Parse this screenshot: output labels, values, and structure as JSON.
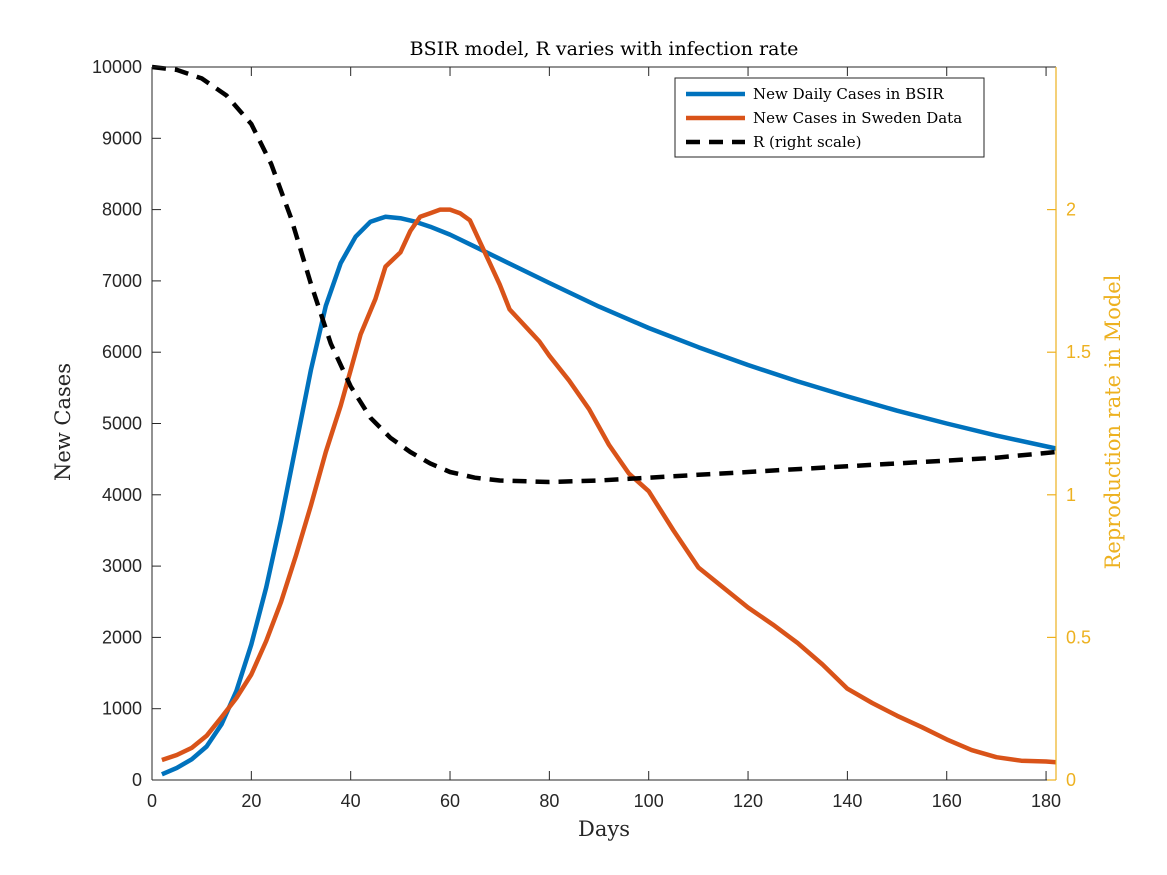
{
  "chart_data": {
    "type": "line",
    "title": "BSIR model, R varies with infection rate",
    "xlabel": "Days",
    "ylabel": "New Cases",
    "y2label": "Reproduction rate in Model",
    "xlim": [
      0,
      182
    ],
    "ylim": [
      0,
      10000
    ],
    "y2lim": [
      0,
      2.5
    ],
    "xticks": [
      0,
      20,
      40,
      60,
      80,
      100,
      120,
      140,
      160,
      180
    ],
    "yticks": [
      0,
      1000,
      2000,
      3000,
      4000,
      5000,
      6000,
      7000,
      8000,
      9000,
      10000
    ],
    "y2ticks": [
      0,
      0.5,
      1,
      1.5,
      2
    ],
    "y2_color": "#EDB120",
    "grid": false,
    "legend_position": "top-right",
    "series": [
      {
        "name": "New Daily Cases in BSIR",
        "axis": "left",
        "color": "#0072BD",
        "style": "solid",
        "x": [
          2,
          5,
          8,
          11,
          14,
          17,
          20,
          23,
          26,
          29,
          32,
          35,
          38,
          41,
          44,
          47,
          50,
          53,
          56,
          60,
          65,
          70,
          75,
          80,
          90,
          100,
          110,
          120,
          130,
          140,
          150,
          160,
          170,
          182
        ],
        "y": [
          80,
          170,
          290,
          470,
          780,
          1250,
          1900,
          2700,
          3650,
          4700,
          5750,
          6650,
          7250,
          7620,
          7830,
          7900,
          7880,
          7830,
          7760,
          7650,
          7480,
          7310,
          7140,
          6970,
          6640,
          6340,
          6070,
          5820,
          5590,
          5380,
          5180,
          5000,
          4830,
          4650
        ]
      },
      {
        "name": "New Cases in Sweden Data",
        "axis": "left",
        "color": "#D95319",
        "style": "solid",
        "x": [
          2,
          5,
          8,
          11,
          14,
          17,
          20,
          23,
          26,
          29,
          32,
          35,
          38,
          40,
          42,
          45,
          47,
          50,
          52,
          54,
          56,
          58,
          60,
          62,
          64,
          66,
          68,
          70,
          72,
          74,
          76,
          78,
          80,
          84,
          88,
          92,
          96,
          100,
          105,
          110,
          115,
          120,
          125,
          130,
          135,
          140,
          145,
          150,
          155,
          160,
          165,
          170,
          175,
          180,
          182
        ],
        "y": [
          280,
          350,
          450,
          620,
          880,
          1150,
          1480,
          1950,
          2500,
          3150,
          3850,
          4600,
          5250,
          5750,
          6250,
          6750,
          7200,
          7400,
          7700,
          7900,
          7950,
          8000,
          8000,
          7950,
          7850,
          7550,
          7250,
          6950,
          6600,
          6450,
          6300,
          6150,
          5950,
          5600,
          5200,
          4700,
          4300,
          4050,
          3500,
          2980,
          2700,
          2420,
          2180,
          1920,
          1620,
          1280,
          1080,
          900,
          740,
          570,
          420,
          320,
          270,
          260,
          250
        ]
      },
      {
        "name": "R (right scale)",
        "axis": "right",
        "color": "#000000",
        "style": "dashed",
        "x": [
          0,
          5,
          10,
          15,
          20,
          24,
          28,
          32,
          36,
          40,
          44,
          48,
          52,
          56,
          60,
          65,
          70,
          80,
          90,
          100,
          110,
          120,
          130,
          140,
          150,
          160,
          170,
          182
        ],
        "y": [
          2.5,
          2.49,
          2.46,
          2.4,
          2.3,
          2.16,
          1.97,
          1.74,
          1.53,
          1.38,
          1.27,
          1.2,
          1.15,
          1.11,
          1.08,
          1.06,
          1.05,
          1.045,
          1.05,
          1.06,
          1.07,
          1.08,
          1.09,
          1.1,
          1.11,
          1.12,
          1.13,
          1.15
        ]
      }
    ]
  }
}
